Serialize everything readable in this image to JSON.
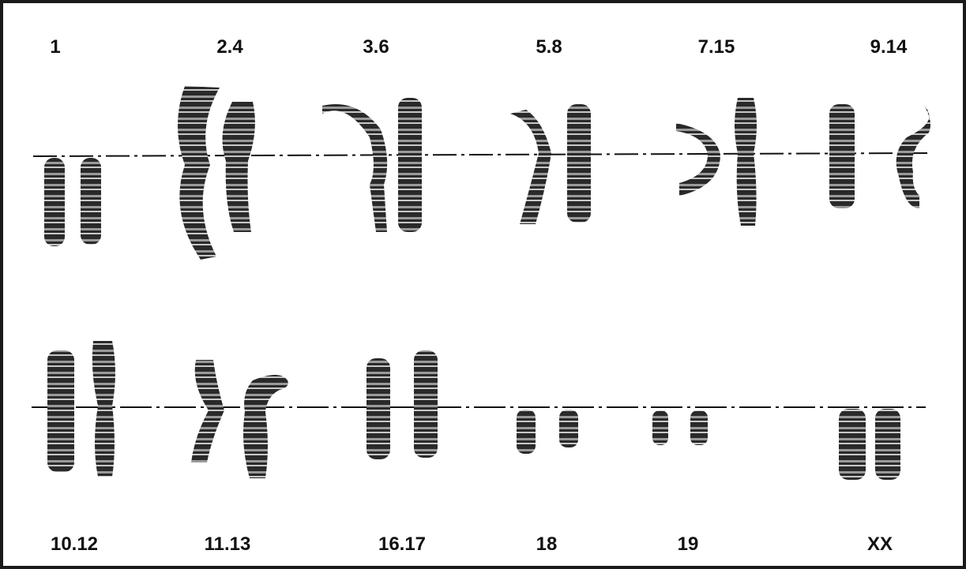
{
  "top_row": {
    "labels": [
      "1",
      "2.4",
      "3.6",
      "5.8",
      "7.15",
      "9.14"
    ]
  },
  "bottom_row": {
    "labels": [
      "10.12",
      "11.13",
      "16.17",
      "18",
      "19",
      "XX"
    ]
  },
  "colors": {
    "chromosome": "#2a2a2a",
    "band_light": "#b8b8b8",
    "centromere_line": "#111111",
    "border": "#1a1a1a",
    "background": "#ffffff"
  }
}
